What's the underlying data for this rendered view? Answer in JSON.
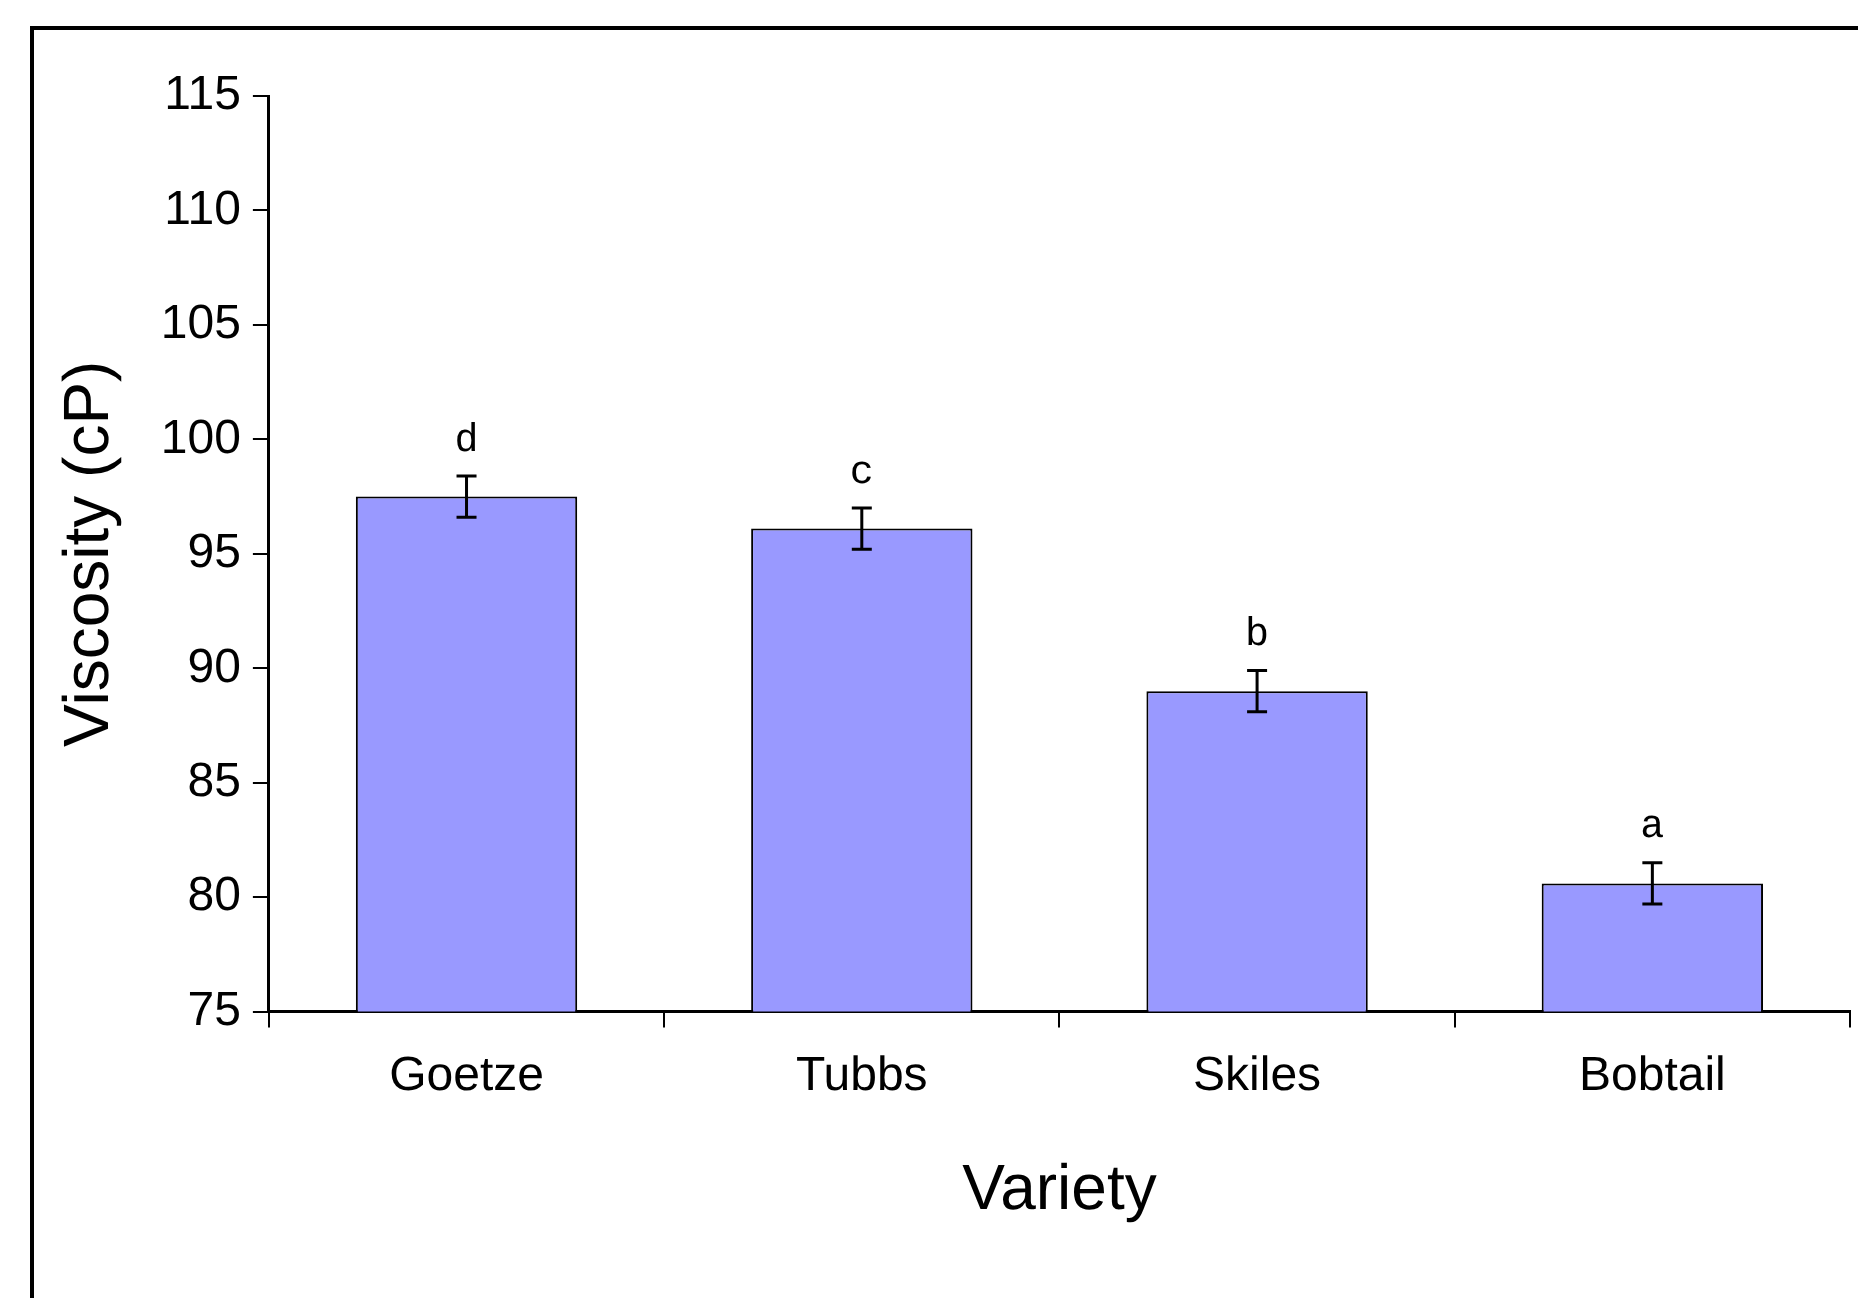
{
  "chart_data": {
    "type": "bar",
    "xlabel": "Variety",
    "ylabel": "Viscosity (cP)",
    "categories": [
      "Goetze",
      "Tubbs",
      "Skiles",
      "Bobtail"
    ],
    "values": [
      97.5,
      96.1,
      89.0,
      80.6
    ],
    "errors": [
      0.9,
      0.9,
      0.9,
      0.9
    ],
    "color": "#9999ff",
    "ylim": [
      75,
      115
    ],
    "yticks": [
      75,
      80,
      85,
      90,
      95,
      100,
      105,
      110,
      115
    ],
    "grid": false,
    "legend": false,
    "annotations": [
      {
        "text": "d",
        "x": "Goetze",
        "y": 98.4
      },
      {
        "text": "c",
        "x": "Tubbs",
        "y": 97.0
      },
      {
        "text": "b",
        "x": "Skiles",
        "y": 89.9
      },
      {
        "text": "a",
        "x": "Bobtail",
        "y": 81.5
      }
    ]
  }
}
